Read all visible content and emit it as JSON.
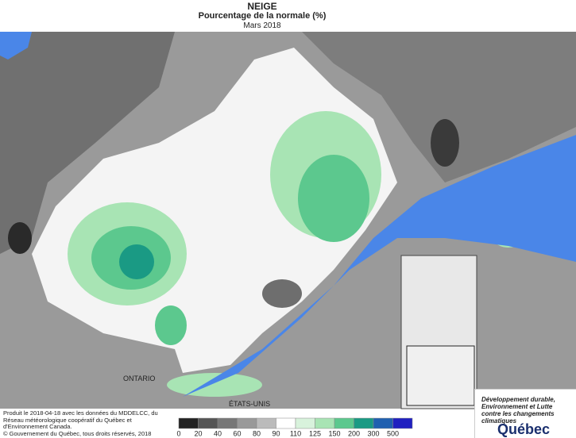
{
  "header": {
    "title": "NEIGE",
    "subtitle": "Pourcentage de la normale (%)",
    "period": "Mars 2018"
  },
  "labels": {
    "ontario": "ONTARIO",
    "usa": "ÉTATS-UNIS"
  },
  "footer": {
    "credits": "Produit le 2018-04-18 avec les données du MDDELCC, du Réseau météorologique coopératif du Québec et d'Environnement Canada.",
    "copyright": "© Gouvernement du Québec, tous droits réservés, 2018"
  },
  "legend": {
    "labels": [
      "0",
      "20",
      "40",
      "60",
      "80",
      "90",
      "110",
      "125",
      "150",
      "200",
      "300",
      "500"
    ],
    "colors": [
      "#222222",
      "#555555",
      "#777777",
      "#999999",
      "#bbbbbb",
      "#ffffff",
      "#d8f2dc",
      "#a8e4b4",
      "#5cc88e",
      "#1a9a84",
      "#2060b0",
      "#2020c0"
    ]
  },
  "logo": {
    "ministry": "Développement durable, Environnement et Lutte contre les changements climatiques",
    "government": "Québec"
  }
}
